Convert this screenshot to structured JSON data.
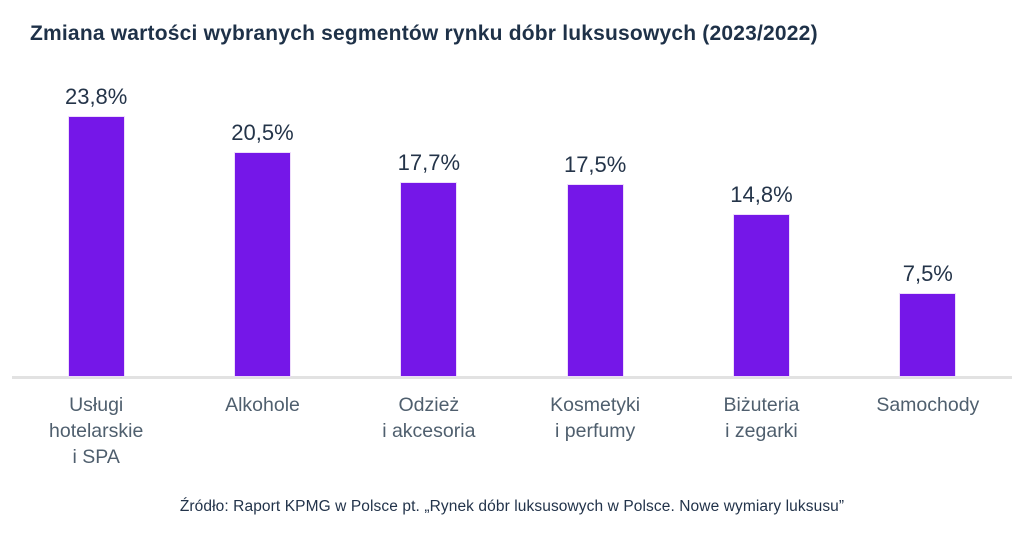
{
  "title": "Zmiana wartości wybranych segmentów rynku dóbr luksusowych (2023/2022)",
  "source": "Źródło: Raport KPMG w Polsce pt. „Rynek dóbr luksusowych w Polsce. Nowe wymiary luksusu”",
  "colors": {
    "bar": "#7517e8",
    "title": "#1e3148",
    "value_label": "#243449",
    "category_label": "#4f5f6e",
    "axis_line": "#e2e2e2",
    "background": "#ffffff"
  },
  "chart_data": {
    "type": "bar",
    "title": "Zmiana wartości wybranych segmentów rynku dóbr luksusowych (2023/2022)",
    "categories": [
      "Usługi\nhotelarskie\ni SPA",
      "Alkohole",
      "Odzież\ni akcesoria",
      "Kosmetyki\ni perfumy",
      "Biżuteria\ni zegarki",
      "Samochody"
    ],
    "values": [
      23.8,
      20.5,
      17.7,
      17.5,
      14.8,
      7.5
    ],
    "value_labels": [
      "23,8%",
      "20,5%",
      "17,7%",
      "17,5%",
      "14,8%",
      "7,5%"
    ],
    "xlabel": "",
    "ylabel": "",
    "ylim": [
      0,
      26
    ],
    "grid": false,
    "legend": false,
    "bar_color": "#7517e8",
    "annotation_source": "Źródło: Raport KPMG w Polsce pt. „Rynek dóbr luksusowych w Polsce. Nowe wymiary luksusu”"
  }
}
